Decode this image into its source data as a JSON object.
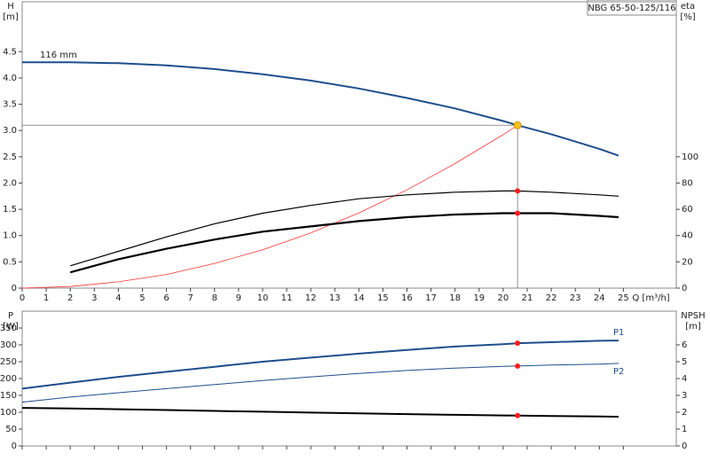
{
  "chart_data": [
    {
      "type": "line",
      "title": "NBG 65-50-125/116",
      "ylabel": "H",
      "yunit": "[m]",
      "y2label": "eta",
      "y2unit": "[%]",
      "xlabel": "Q [m³/h]",
      "annotation": "116 mm",
      "x": [
        0,
        2,
        4,
        6,
        8,
        10,
        12,
        14,
        16,
        18,
        20,
        20.6,
        22,
        24,
        24.8
      ],
      "xlim": [
        0,
        27.2
      ],
      "xticks": [
        0,
        1,
        2,
        3,
        4,
        5,
        6,
        7,
        8,
        9,
        10,
        11,
        12,
        13,
        14,
        15,
        16,
        17,
        18,
        19,
        20,
        21,
        22,
        23,
        24,
        25
      ],
      "ylim": [
        0,
        5.45
      ],
      "yticks": [
        0,
        {
          "value": 0.5,
          "label": "0.5"
        },
        {
          "value": 1,
          "label": "1.0"
        },
        {
          "value": 1.5,
          "label": "1.5"
        },
        {
          "value": 2,
          "label": "2.0"
        },
        {
          "value": 2.5,
          "label": "2.5"
        },
        {
          "value": 3,
          "label": "3.0"
        },
        {
          "value": 3.5,
          "label": "3.5"
        },
        {
          "value": 4,
          "label": "4.0"
        },
        {
          "value": 4.5,
          "label": "4.5"
        }
      ],
      "y2lim": [
        0,
        218
      ],
      "y2ticks": [
        0,
        20,
        40,
        60,
        80,
        100
      ],
      "operating_point": {
        "x": 20.6,
        "y": 3.1,
        "color": "#f5c518"
      },
      "series": [
        {
          "color": "#1f4e8c",
          "line_width": 2,
          "values": [
            4.3,
            4.3,
            4.28,
            4.24,
            4.17,
            4.07,
            3.95,
            3.8,
            3.62,
            3.42,
            3.18,
            3.1,
            2.93,
            2.65,
            2.52
          ]
        },
        {
          "color": "#ff3333",
          "line_width": 0.8,
          "values": [
            0,
            0.03,
            0.12,
            0.26,
            0.47,
            0.73,
            1.05,
            1.43,
            1.87,
            2.37,
            2.92,
            3.1,
            null,
            null,
            null
          ]
        },
        {
          "color": "#000000",
          "line_width": 1.2,
          "axis": "y2",
          "dot": true,
          "values": [
            null,
            17,
            28,
            39,
            49,
            57,
            63,
            68,
            71,
            73,
            74,
            74,
            73,
            71,
            70
          ]
        },
        {
          "color": "#000000",
          "line_width": 2.2,
          "axis": "y2",
          "dot": true,
          "values": [
            null,
            12,
            22,
            30,
            37,
            43,
            47,
            51,
            54,
            56,
            57,
            57,
            57,
            55,
            54
          ]
        }
      ]
    },
    {
      "type": "line",
      "ylabel": "P",
      "yunit": "[W]",
      "y2label": "NPSH",
      "y2unit": "[m]",
      "x": [
        0,
        2,
        4,
        6,
        8,
        10,
        12,
        14,
        16,
        18,
        20,
        20.6,
        22,
        24,
        24.8
      ],
      "xlim": [
        0,
        27.2
      ],
      "xticks": [
        0,
        1,
        2,
        3,
        4,
        5,
        6,
        7,
        8,
        9,
        10,
        11,
        12,
        13,
        14,
        15,
        16,
        17,
        18,
        19,
        20,
        21,
        22,
        23,
        24,
        25
      ],
      "ylim": [
        0,
        400
      ],
      "yticks": [
        0,
        50,
        100,
        150,
        200,
        250,
        300,
        350
      ],
      "y2lim": [
        0,
        8
      ],
      "y2ticks": [
        0,
        1,
        2,
        3,
        4,
        5,
        6
      ],
      "operating_x": 20.6,
      "series": [
        {
          "name": "P1",
          "color": "#1f4e8c",
          "line_width": 2,
          "dot": true,
          "values": [
            170,
            188,
            205,
            220,
            235,
            250,
            262,
            274,
            285,
            295,
            302,
            305,
            308,
            312,
            313
          ]
        },
        {
          "name": "P2",
          "color": "#1f4e8c",
          "line_width": 1,
          "dot": true,
          "values": [
            130,
            145,
            158,
            170,
            182,
            194,
            205,
            215,
            224,
            231,
            236,
            237,
            240,
            243,
            245
          ]
        },
        {
          "color": "#000000",
          "line_width": 2,
          "axis": "y2",
          "dot": true,
          "values": [
            2.26,
            2.22,
            2.18,
            2.13,
            2.08,
            2.03,
            1.98,
            1.93,
            1.89,
            1.85,
            1.81,
            1.8,
            1.78,
            1.75,
            1.73
          ]
        }
      ]
    }
  ]
}
